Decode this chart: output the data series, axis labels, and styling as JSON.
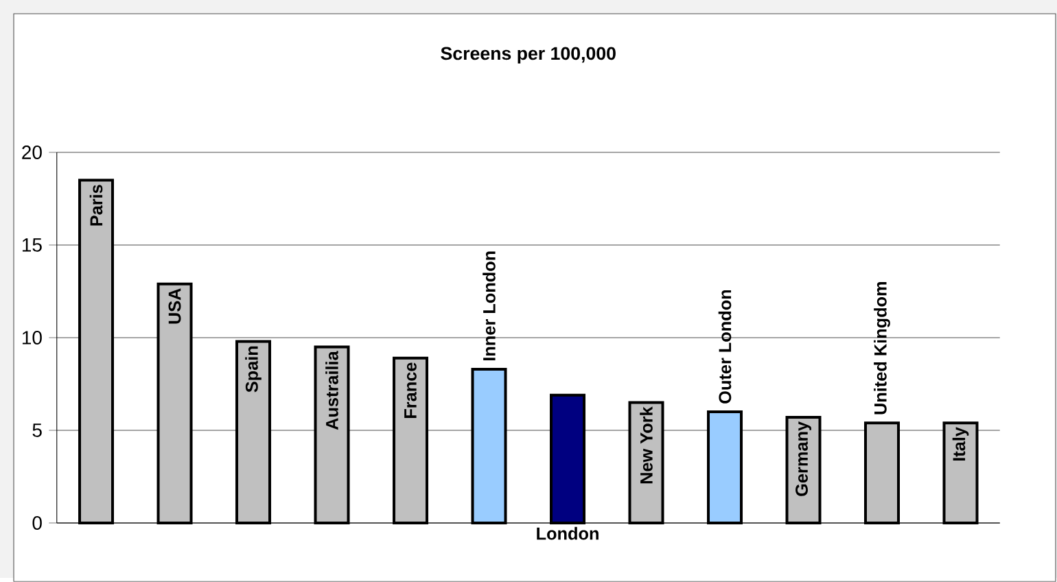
{
  "chart_data": {
    "type": "bar",
    "title": "Screens per 100,000",
    "categories": [
      "Paris",
      "USA",
      "Spain",
      "Austrailia",
      "France",
      "Inner London",
      "London",
      "New York",
      "Outer London",
      "Germany",
      "United Kingdom",
      "Italy"
    ],
    "values": [
      18.5,
      12.9,
      9.8,
      9.5,
      8.9,
      8.3,
      6.9,
      6.5,
      6.0,
      5.7,
      5.4,
      5.4
    ],
    "colors": [
      "#c0c0c0",
      "#c0c0c0",
      "#c0c0c0",
      "#c0c0c0",
      "#c0c0c0",
      "#99ccff",
      "#000080",
      "#c0c0c0",
      "#99ccff",
      "#c0c0c0",
      "#c0c0c0",
      "#c0c0c0"
    ],
    "ylim": [
      0,
      20
    ],
    "yticks": [
      0,
      5,
      10,
      15,
      20
    ],
    "grid": "y"
  }
}
